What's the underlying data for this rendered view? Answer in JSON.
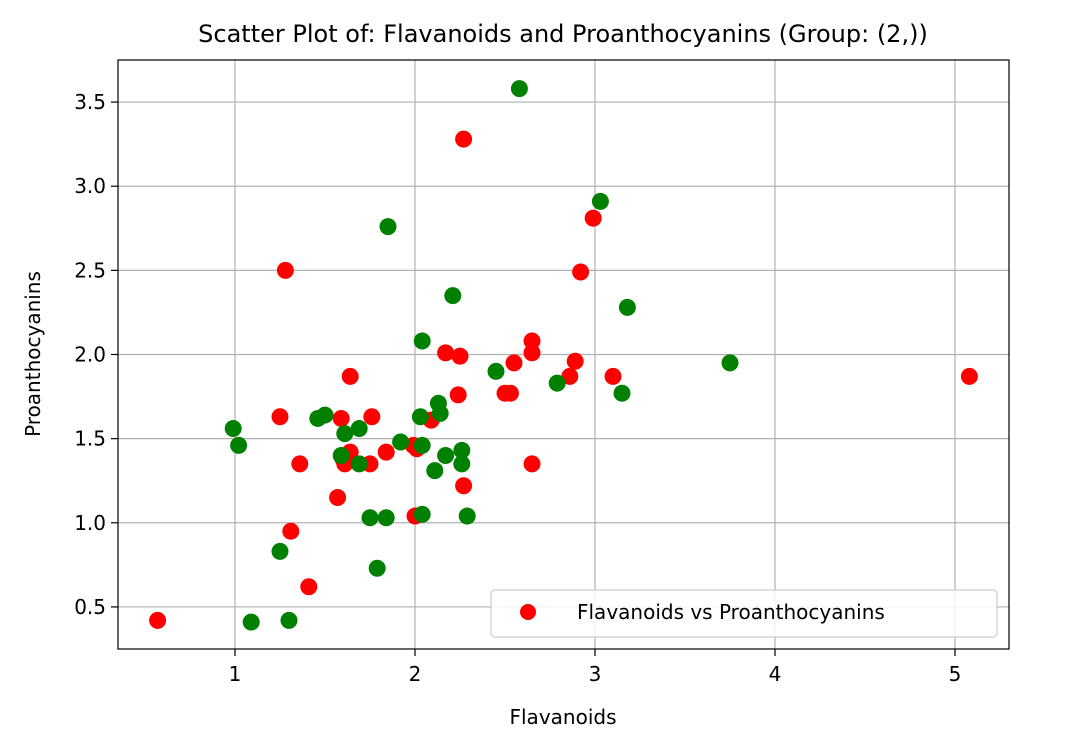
{
  "chart_data": {
    "type": "scatter",
    "title": "Scatter Plot of: Flavanoids and Proanthocyanins (Group: (2,))",
    "xlabel": "Flavanoids",
    "ylabel": "Proanthocyanins",
    "xlim": [
      0.35,
      5.3
    ],
    "ylim": [
      0.25,
      3.75
    ],
    "xticks": [
      1,
      2,
      3,
      4,
      5
    ],
    "yticks": [
      0.5,
      1.0,
      1.5,
      2.0,
      2.5,
      3.0,
      3.5
    ],
    "xtick_labels": [
      "1",
      "2",
      "3",
      "4",
      "5"
    ],
    "ytick_labels": [
      "0.5",
      "1.0",
      "1.5",
      "2.0",
      "2.5",
      "3.0",
      "3.5"
    ],
    "grid": true,
    "legend_position": "lower-right",
    "legend": [
      {
        "label": "Flavanoids vs Proanthocyanins",
        "color": "#ff0000"
      }
    ],
    "series": [
      {
        "color": "#ff0000",
        "points": [
          [
            0.57,
            0.42
          ],
          [
            1.25,
            1.63
          ],
          [
            1.28,
            2.5
          ],
          [
            1.31,
            0.95
          ],
          [
            1.36,
            1.35
          ],
          [
            1.41,
            0.62
          ],
          [
            1.57,
            1.15
          ],
          [
            1.59,
            1.62
          ],
          [
            1.6,
            1.38
          ],
          [
            1.61,
            1.35
          ],
          [
            1.64,
            1.42
          ],
          [
            1.64,
            1.87
          ],
          [
            1.75,
            1.35
          ],
          [
            1.76,
            1.63
          ],
          [
            1.84,
            1.42
          ],
          [
            1.99,
            1.46
          ],
          [
            2.0,
            1.04
          ],
          [
            2.01,
            1.44
          ],
          [
            2.09,
            1.61
          ],
          [
            2.17,
            2.01
          ],
          [
            2.24,
            1.76
          ],
          [
            2.25,
            1.99
          ],
          [
            2.27,
            1.22
          ],
          [
            2.27,
            3.28
          ],
          [
            2.5,
            1.77
          ],
          [
            2.53,
            1.77
          ],
          [
            2.55,
            1.95
          ],
          [
            2.65,
            2.01
          ],
          [
            2.65,
            2.08
          ],
          [
            2.65,
            1.35
          ],
          [
            2.86,
            1.87
          ],
          [
            2.89,
            1.96
          ],
          [
            2.92,
            2.49
          ],
          [
            2.99,
            2.81
          ],
          [
            3.1,
            1.87
          ],
          [
            5.08,
            1.87
          ]
        ]
      },
      {
        "color": "#008000",
        "points": [
          [
            0.99,
            1.56
          ],
          [
            1.02,
            1.46
          ],
          [
            1.09,
            0.41
          ],
          [
            1.25,
            0.83
          ],
          [
            1.3,
            0.42
          ],
          [
            1.46,
            1.62
          ],
          [
            1.5,
            1.64
          ],
          [
            1.59,
            1.4
          ],
          [
            1.61,
            1.53
          ],
          [
            1.69,
            1.35
          ],
          [
            1.69,
            1.56
          ],
          [
            1.75,
            1.03
          ],
          [
            1.79,
            0.73
          ],
          [
            1.84,
            1.03
          ],
          [
            1.85,
            2.76
          ],
          [
            1.92,
            1.48
          ],
          [
            2.03,
            1.63
          ],
          [
            2.04,
            1.05
          ],
          [
            2.04,
            2.08
          ],
          [
            2.04,
            1.46
          ],
          [
            2.11,
            1.31
          ],
          [
            2.13,
            1.71
          ],
          [
            2.14,
            1.65
          ],
          [
            2.17,
            1.4
          ],
          [
            2.21,
            2.35
          ],
          [
            2.26,
            1.43
          ],
          [
            2.26,
            1.35
          ],
          [
            2.29,
            1.04
          ],
          [
            2.45,
            1.9
          ],
          [
            2.58,
            3.58
          ],
          [
            2.79,
            1.83
          ],
          [
            3.03,
            2.91
          ],
          [
            3.15,
            1.77
          ],
          [
            3.18,
            2.28
          ],
          [
            3.75,
            1.95
          ]
        ]
      }
    ]
  }
}
